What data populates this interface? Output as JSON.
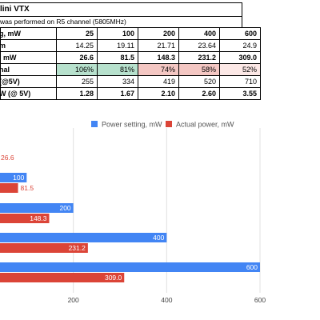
{
  "sheet": {
    "title": "lini VTX",
    "note": "was performed on R5 channel (5805MHz)",
    "header": {
      "label": "g, mW",
      "values": [
        "25",
        "100",
        "200",
        "400",
        "600"
      ]
    },
    "rows": [
      {
        "label": "m",
        "values": [
          "14.25",
          "19.11",
          "21.71",
          "23.64",
          "24.9"
        ],
        "bold": false,
        "colors": [
          "",
          "",
          "",
          "",
          ""
        ]
      },
      {
        "label": ", mW",
        "values": [
          "26.6",
          "81.5",
          "148.3",
          "231.2",
          "309.0"
        ],
        "bold": true,
        "colors": [
          "",
          "",
          "",
          "",
          ""
        ]
      },
      {
        "label": "nal",
        "values": [
          "106%",
          "81%",
          "74%",
          "58%",
          "52%"
        ],
        "bold": false,
        "colors": [
          "#b7e1cd",
          "#b7e1cd",
          "#f4c7c3",
          "#f4c7c3",
          "#fce8e6"
        ]
      },
      {
        "label": "(@5V)",
        "values": [
          "255",
          "334",
          "419",
          "520",
          "710"
        ],
        "bold": false,
        "colors": [
          "",
          "",
          "",
          "",
          ""
        ]
      },
      {
        "label": "W (@ 5V)",
        "values": [
          "1.28",
          "1.67",
          "2.10",
          "2.60",
          "3.55"
        ],
        "bold": true,
        "colors": [
          "",
          "",
          "",
          "",
          ""
        ]
      }
    ]
  },
  "chart_data": {
    "type": "bar",
    "orientation": "horizontal",
    "categories": [
      "25",
      "100",
      "200",
      "400",
      "600"
    ],
    "series": [
      {
        "name": "Power setting, mW",
        "color": "#4285f4",
        "values": [
          25,
          100,
          200,
          400,
          600
        ],
        "labels": [
          "",
          "100",
          "200",
          "400",
          "600"
        ]
      },
      {
        "name": "Actual power, mW",
        "color": "#db4437",
        "values": [
          26.6,
          81.5,
          148.3,
          231.2,
          309.0
        ],
        "labels": [
          "26.6",
          "81.5",
          "148.3",
          "231.2",
          "309.0"
        ]
      }
    ],
    "xticks": [
      "200",
      "400",
      "600"
    ],
    "xlim": [
      0,
      600
    ],
    "grid": true,
    "legend": "top"
  }
}
